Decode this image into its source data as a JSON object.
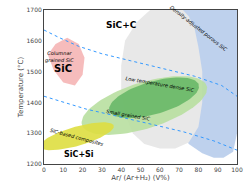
{
  "chart_data": {
    "type": "region_map",
    "xlabel": "Ar/ (Ar+H₂) (V%)",
    "ylabel": "Temperature (°C)",
    "xlim": [
      0,
      100
    ],
    "ylim": [
      1200,
      1700
    ],
    "xticks": [
      0,
      10,
      20,
      30,
      40,
      50,
      60,
      70,
      80,
      90,
      100
    ],
    "yticks": [
      1200,
      1300,
      1400,
      1500,
      1600,
      1700
    ],
    "grid": false,
    "regions": [
      {
        "shape": "polygon",
        "color": "#aec6e8",
        "x": [
          62,
          70,
          78,
          85,
          90,
          95,
          98,
          100,
          100,
          100,
          98,
          93,
          88,
          82,
          75,
          68,
          62
        ],
        "y": [
          1700,
          1700,
          1700,
          1700,
          1700,
          1700,
          1700,
          1700,
          1600,
          1300,
          1240,
          1220,
          1220,
          1235,
          1265,
          1330,
          1420
        ]
      },
      {
        "shape": "polygon",
        "color": "#e8e8e8",
        "x": [
          55,
          62,
          68,
          72,
          75,
          78,
          80,
          82,
          82,
          80,
          75,
          68,
          60,
          52,
          46,
          42,
          40,
          40,
          42,
          48,
          55
        ],
        "y": [
          1700,
          1700,
          1700,
          1700,
          1680,
          1640,
          1580,
          1500,
          1400,
          1320,
          1270,
          1250,
          1250,
          1265,
          1300,
          1360,
          1430,
          1520,
          1600,
          1660,
          1700
        ]
      },
      {
        "shape": "polygon",
        "color": "#f4b0b0",
        "x": [
          2,
          6,
          12,
          18,
          21,
          20,
          16,
          10,
          5,
          2
        ],
        "y": [
          1555,
          1590,
          1610,
          1590,
          1545,
          1490,
          1455,
          1465,
          1505,
          1555
        ]
      },
      {
        "shape": "ellipse",
        "color": "#b8dfa0",
        "cx": 52,
        "cy": 1390,
        "w": 52,
        "h": 195,
        "angle": -12
      },
      {
        "shape": "ellipse",
        "color": "#68b868",
        "cx": 57,
        "cy": 1415,
        "w": 38,
        "h": 135,
        "angle": -12
      },
      {
        "shape": "ellipse",
        "color": "#dede40",
        "cx": 17,
        "cy": 1290,
        "w": 26,
        "h": 95,
        "angle": -18
      }
    ],
    "lines": [
      {
        "color": "#3399ff",
        "line_style": "dotted",
        "x": [
          0,
          8,
          18,
          30,
          45,
          62,
          78,
          92,
          100
        ],
        "y": [
          1635,
          1610,
          1582,
          1558,
          1535,
          1510,
          1485,
          1455,
          1420
        ]
      },
      {
        "color": "#3399ff",
        "line_style": "dotted",
        "x": [
          0,
          10,
          22,
          38,
          55,
          72,
          88,
          100
        ],
        "y": [
          1420,
          1400,
          1378,
          1355,
          1330,
          1305,
          1275,
          1245
        ]
      }
    ],
    "labels": [
      {
        "text": "SiC+C",
        "x": 40,
        "y": 1650
      },
      {
        "text": "Density-adjusted porous SiC",
        "x": 80,
        "y": 1640
      },
      {
        "text": "SiC",
        "x": 10,
        "y": 1510
      },
      {
        "text": "Columnar\ngrained SiC",
        "x": 8,
        "y": 1548
      },
      {
        "text": "Low temperature dense SiC",
        "x": 60,
        "y": 1458
      },
      {
        "text": "Small grained SiC",
        "x": 44,
        "y": 1358
      },
      {
        "text": "SiC-based composites",
        "x": 17,
        "y": 1285
      },
      {
        "text": "SiC+Si",
        "x": 18,
        "y": 1232
      }
    ]
  }
}
